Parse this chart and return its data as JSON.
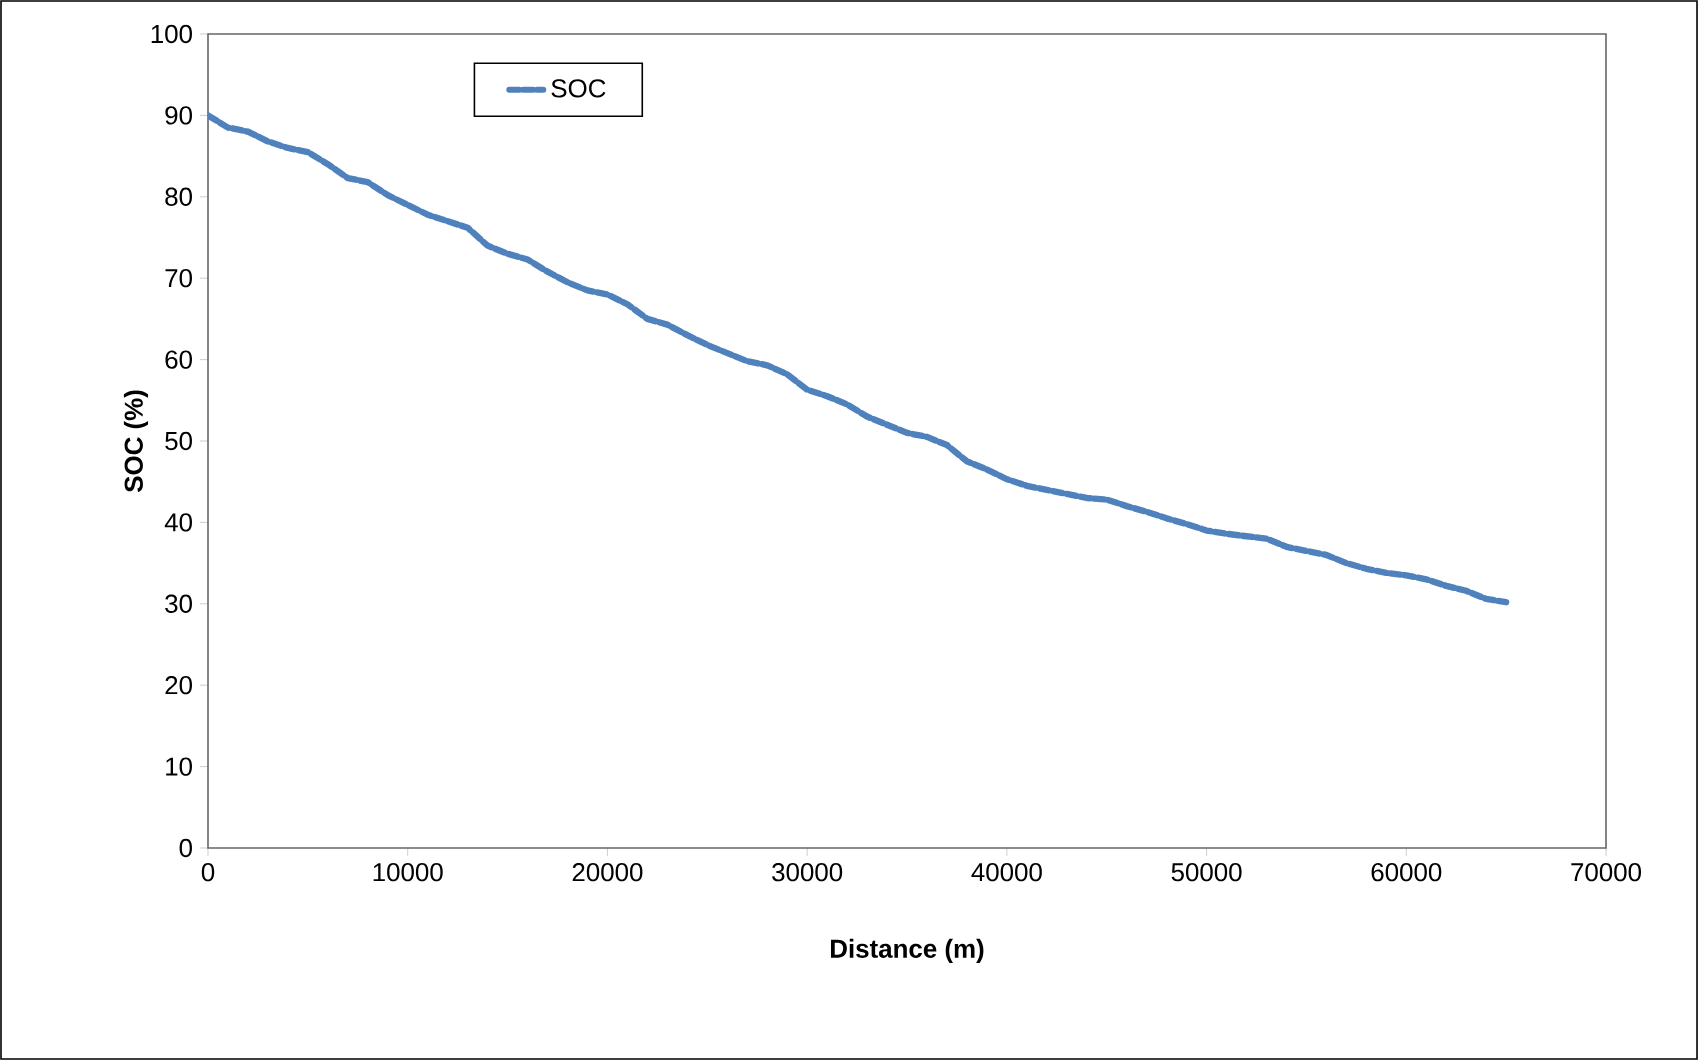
{
  "chart_data": {
    "type": "line",
    "xlabel": "Distance (m)",
    "ylabel": "SOC (%)",
    "x": [
      0,
      1000,
      2000,
      3000,
      4000,
      5000,
      6000,
      7000,
      8000,
      9000,
      10000,
      11000,
      12000,
      13000,
      14000,
      15000,
      16000,
      17000,
      18000,
      19000,
      20000,
      21000,
      22000,
      23000,
      24000,
      25000,
      26000,
      27000,
      28000,
      29000,
      30000,
      31000,
      32000,
      33000,
      34000,
      35000,
      36000,
      37000,
      38000,
      39000,
      40000,
      41000,
      42000,
      43000,
      44000,
      45000,
      46000,
      47000,
      48000,
      49000,
      50000,
      51000,
      52000,
      53000,
      54000,
      55000,
      56000,
      57000,
      58000,
      59000,
      60000,
      61000,
      62000,
      63000,
      64000,
      65000
    ],
    "series": [
      {
        "name": "SOC",
        "color": "#4f81bd",
        "line_style": "dashed",
        "values": [
          90,
          88.5,
          88,
          86.8,
          86,
          85.5,
          84,
          82.3,
          81.8,
          80.2,
          79,
          77.8,
          77,
          76.2,
          74,
          73,
          72.3,
          70.8,
          69.5,
          68.5,
          68,
          66.8,
          65,
          64.3,
          63,
          61.8,
          60.8,
          59.8,
          59.3,
          58.2,
          56.3,
          55.5,
          54.5,
          53,
          52,
          51,
          50.5,
          49.5,
          47.5,
          46.5,
          45.3,
          44.5,
          44,
          43.5,
          43,
          42.8,
          42,
          41.3,
          40.5,
          39.8,
          39,
          38.6,
          38.3,
          38,
          37,
          36.5,
          36,
          35,
          34.3,
          33.8,
          33.5,
          33,
          32.2,
          31.6,
          30.6,
          30.2
        ]
      }
    ],
    "xlim": [
      0,
      70000
    ],
    "ylim": [
      0,
      100
    ],
    "xticks": [
      0,
      10000,
      20000,
      30000,
      40000,
      50000,
      60000,
      70000
    ],
    "yticks": [
      0,
      10,
      20,
      30,
      40,
      50,
      60,
      70,
      80,
      90,
      100
    ],
    "grid": false,
    "legend": "top left",
    "marker": "none"
  }
}
